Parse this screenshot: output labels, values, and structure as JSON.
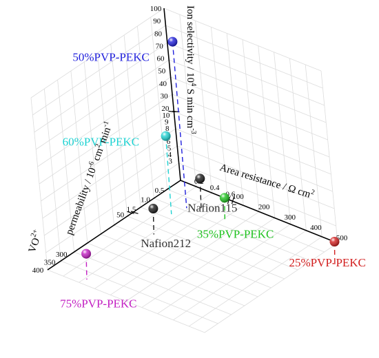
{
  "chart_data": {
    "type": "scatter3d",
    "axes": {
      "x": {
        "label_main": "Area resistance / Ω cm",
        "label_sup": "2",
        "ticks_low": [
          "0.2",
          "0.4",
          "0.6"
        ],
        "ticks_high": [
          "100",
          "200",
          "300",
          "400",
          "500"
        ]
      },
      "y": {
        "label_main": "permeability / 10",
        "label_sup": "-6",
        "label_cm": "cm",
        "label_sup2": "2",
        "label_min": "min",
        "label_sup3": "-1",
        "ticks_low": [
          "0.5",
          "1.0",
          "1.5"
        ],
        "ticks_high": [
          "50",
          "300",
          "350",
          "400"
        ],
        "ion": "VO",
        "ion_sup": "2+"
      },
      "z": {
        "label_main": "Ion selectivity / 10",
        "label_sup": "4",
        "label_rest": "S min cm",
        "label_sup2": "-3",
        "ticks_low": [
          "3",
          "4",
          "5",
          "6",
          "7",
          "8",
          "9",
          "10"
        ],
        "ticks_high": [
          "20",
          "30",
          "40",
          "50",
          "60",
          "70",
          "80",
          "90",
          "100"
        ]
      }
    },
    "points": [
      {
        "name": "50%PVP-PEKC",
        "color": "#1f1fdc",
        "area_resistance": 0.15,
        "vo_permeability": 0.2,
        "ion_selectivity": 80
      },
      {
        "name": "60%PVP-PEKC",
        "color": "#1ed2d2",
        "area_resistance": 0.1,
        "vo_permeability": 0.6,
        "ion_selectivity": 9
      },
      {
        "name": "Nafion115",
        "color": "#1a1a1a",
        "area_resistance": 0.3,
        "vo_permeability": 0.1,
        "ion_selectivity": 2
      },
      {
        "name": "Nafion212",
        "color": "#1a1a1a",
        "area_resistance": 0.2,
        "vo_permeability": 1.5,
        "ion_selectivity": 1
      },
      {
        "name": "75%PVP-PEKC",
        "color": "#c21ec2",
        "area_resistance": 0.2,
        "vo_permeability": 300,
        "ion_selectivity": 1
      },
      {
        "name": "35%PVP-PEKC",
        "color": "#1ec21e",
        "area_resistance": 0.6,
        "vo_permeability": 0.1,
        "ion_selectivity": 0.5
      },
      {
        "name": "25%PVP-PEKC",
        "color": "#d21e1e",
        "area_resistance": 500,
        "vo_permeability": 0.1,
        "ion_selectivity": 0.5
      }
    ]
  }
}
